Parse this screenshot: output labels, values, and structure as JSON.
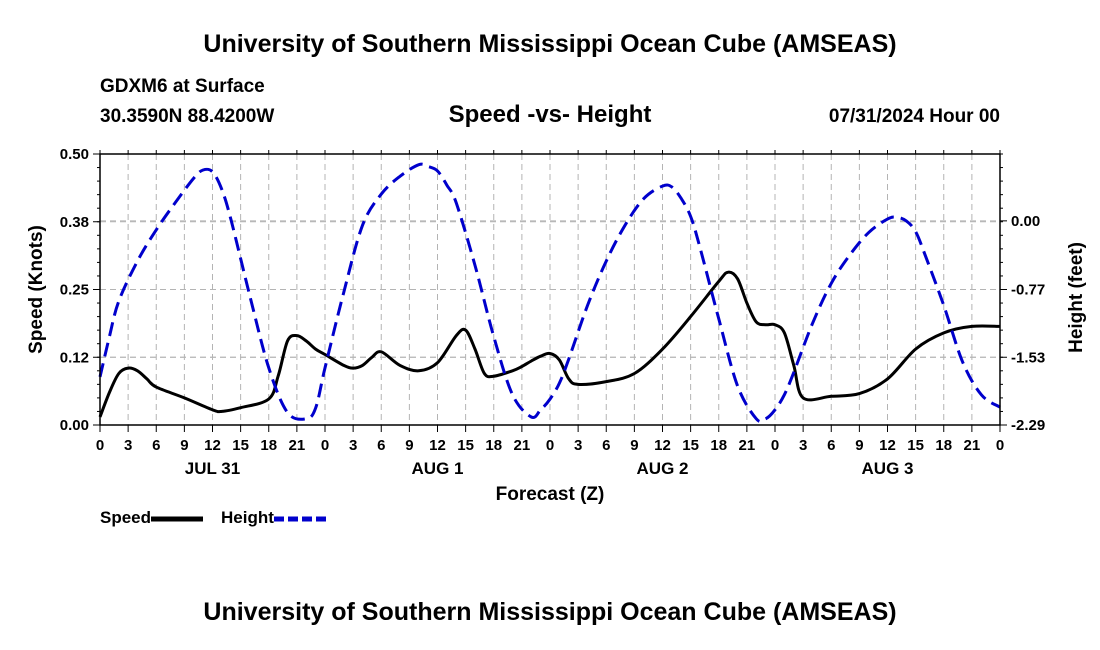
{
  "page": {
    "title_top": "University of Southern Mississippi Ocean Cube (AMSEAS)",
    "title_bottom": "University of Southern Mississippi Ocean Cube (AMSEAS)",
    "station": "GDXM6 at Surface",
    "location": "30.3590N  88.4200W",
    "chart_title": "Speed -vs- Height",
    "timestamp": "07/31/2024 Hour 00"
  },
  "chart_data": {
    "type": "line",
    "title": "Speed -vs- Height",
    "xlabel": "Forecast (Z)",
    "ylabel_left": "Speed (Knots)",
    "ylabel_right": "Height (feet)",
    "x_range": [
      0,
      96
    ],
    "x_tick_step": 3,
    "x_tick_labels": [
      "0",
      "3",
      "6",
      "9",
      "12",
      "15",
      "18",
      "21",
      "0",
      "3",
      "6",
      "9",
      "12",
      "15",
      "18",
      "21",
      "0",
      "3",
      "6",
      "9",
      "12",
      "15",
      "18",
      "21",
      "0",
      "3",
      "6",
      "9",
      "12",
      "15",
      "18",
      "21",
      "0"
    ],
    "day_labels": [
      {
        "label": "JUL 31",
        "x": 12
      },
      {
        "label": "AUG 1",
        "x": 36
      },
      {
        "label": "AUG 2",
        "x": 60
      },
      {
        "label": "AUG 3",
        "x": 84
      }
    ],
    "y_left": {
      "range": [
        0,
        0.5
      ],
      "ticks": [
        0.0,
        0.125,
        0.25,
        0.375,
        0.5
      ],
      "tick_labels": [
        "0.00",
        "0.12",
        "0.25",
        "0.38",
        "0.50"
      ]
    },
    "y_right": {
      "range": [
        -2.29,
        0.75
      ],
      "ticks": [
        -2.29,
        -1.53,
        -0.77,
        0.0
      ],
      "tick_labels": [
        "-2.29",
        "-1.53",
        "-0.77",
        "0.00"
      ]
    },
    "grid": true,
    "legend": [
      {
        "label": "Speed",
        "color": "#000000",
        "style": "solid"
      },
      {
        "label": "Height",
        "color": "#0000cc",
        "style": "dashed"
      }
    ],
    "series": [
      {
        "name": "Speed",
        "axis": "left",
        "color": "#000000",
        "dash": "solid",
        "x": [
          0,
          1,
          2,
          3,
          4,
          5,
          6,
          9,
          12,
          13,
          15,
          18,
          19,
          20,
          21,
          22,
          23,
          24,
          26,
          27,
          28,
          29,
          30,
          32,
          34,
          36,
          38,
          39,
          40,
          41,
          42,
          44,
          45,
          46,
          47,
          48,
          49,
          50,
          51,
          54,
          57,
          60,
          63,
          66,
          67,
          68,
          69,
          70,
          71,
          72,
          73,
          74,
          75,
          78,
          81,
          84,
          87,
          90,
          93,
          96
        ],
        "y": [
          0.015,
          0.06,
          0.095,
          0.105,
          0.1,
          0.085,
          0.07,
          0.05,
          0.028,
          0.025,
          0.032,
          0.048,
          0.09,
          0.155,
          0.165,
          0.155,
          0.14,
          0.13,
          0.11,
          0.105,
          0.11,
          0.125,
          0.135,
          0.11,
          0.1,
          0.115,
          0.165,
          0.175,
          0.14,
          0.095,
          0.09,
          0.1,
          0.108,
          0.118,
          0.127,
          0.132,
          0.12,
          0.085,
          0.075,
          0.08,
          0.095,
          0.14,
          0.2,
          0.265,
          0.282,
          0.27,
          0.225,
          0.19,
          0.185,
          0.185,
          0.17,
          0.11,
          0.05,
          0.053,
          0.058,
          0.085,
          0.14,
          0.17,
          0.182,
          0.182
        ]
      },
      {
        "name": "Height",
        "axis": "right",
        "color": "#0000cc",
        "dash": "dashed",
        "x": [
          0,
          1,
          2,
          4,
          6,
          8,
          10,
          11,
          12,
          13,
          14,
          16,
          18,
          20,
          22,
          23,
          24,
          26,
          28,
          30,
          32,
          34,
          35,
          36,
          37,
          38,
          40,
          42,
          44,
          46,
          47,
          48,
          49,
          50,
          52,
          54,
          56,
          58,
          60,
          61,
          62,
          63,
          64,
          66,
          68,
          70,
          71,
          72,
          73,
          74,
          76,
          78,
          80,
          82,
          84,
          85,
          86,
          87,
          88,
          90,
          92,
          94,
          96
        ],
        "y": [
          -1.75,
          -1.3,
          -0.9,
          -0.45,
          -0.1,
          0.2,
          0.48,
          0.57,
          0.55,
          0.35,
          0.0,
          -0.85,
          -1.65,
          -2.15,
          -2.22,
          -2.1,
          -1.65,
          -0.8,
          -0.05,
          0.3,
          0.5,
          0.63,
          0.61,
          0.56,
          0.4,
          0.2,
          -0.5,
          -1.3,
          -1.95,
          -2.2,
          -2.12,
          -2.0,
          -1.82,
          -1.55,
          -0.95,
          -0.45,
          -0.05,
          0.25,
          0.39,
          0.38,
          0.25,
          0.05,
          -0.3,
          -1.1,
          -1.85,
          -2.22,
          -2.22,
          -2.12,
          -1.95,
          -1.7,
          -1.15,
          -0.7,
          -0.38,
          -0.13,
          0.02,
          0.04,
          0.0,
          -0.12,
          -0.38,
          -0.95,
          -1.58,
          -1.95,
          -2.09
        ]
      }
    ]
  }
}
